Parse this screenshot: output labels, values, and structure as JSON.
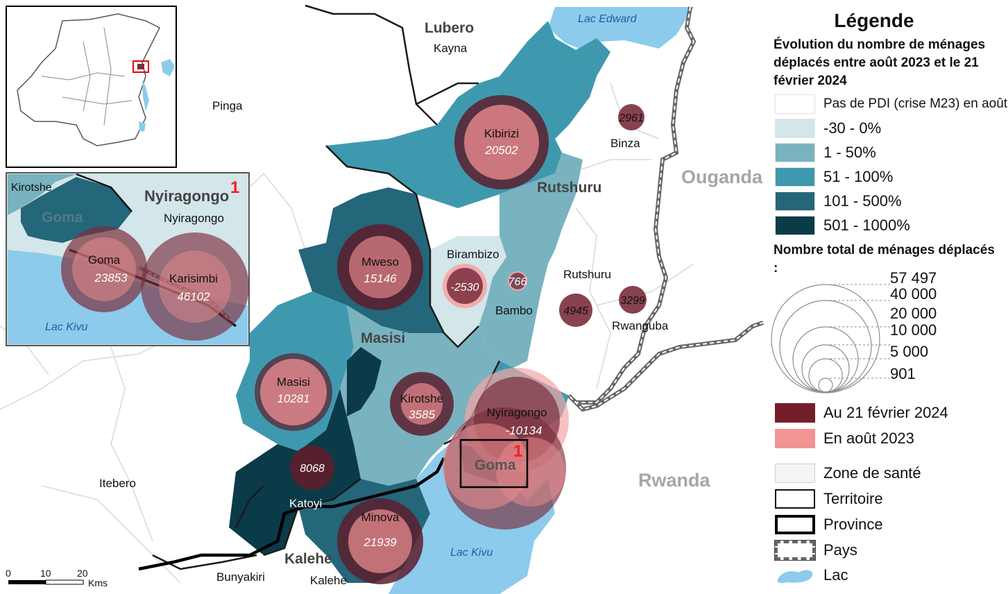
{
  "map": {
    "countries": {
      "uganda": "Ouganda",
      "rwanda": "Rwanda"
    },
    "territories": {
      "lubero": "Lubero",
      "rutshuru": "Rutshuru",
      "masisi": "Masisi",
      "kalehe": "Kalehe",
      "goma": "Goma",
      "nyiragongo_inset": "Nyiragongo"
    },
    "places": {
      "kayna": "Kayna",
      "pinga": "Pinga",
      "binza": "Binza",
      "birambizo": "Birambizo",
      "bambo": "Bambo",
      "rutshuru": "Rutshuru",
      "rwanguba": "Rwanguba",
      "itebero": "Itebero",
      "katoyi": "Katoyi",
      "bunyakiri": "Bunyakiri",
      "kalehe": "Kalehe",
      "kirotshe_inset": "Kirotshe",
      "goma_inset": "Goma",
      "nyiragongo_inset": "Nyiragongo"
    },
    "lakes": {
      "edward": "Lac Edward",
      "kivu": "Lac Kivu",
      "kivu_inset": "Lac Kivu"
    },
    "inset_marker": "1",
    "zones": [
      {
        "id": "kibirizi",
        "name": "Kibirizi",
        "value": "20502"
      },
      {
        "id": "mweso",
        "name": "Mweso",
        "value": "15146"
      },
      {
        "id": "masisi",
        "name": "Masisi",
        "value": "10281"
      },
      {
        "id": "kirotshe",
        "name": "Kirotshe",
        "value": "3585"
      },
      {
        "id": "nyiragongo",
        "name": "Nyiragongo",
        "value": "-10134"
      },
      {
        "id": "minova",
        "name": "Minova",
        "value": "21939"
      },
      {
        "id": "goma",
        "name": "Goma",
        "value": "23853"
      },
      {
        "id": "karisimbi",
        "name": "Karisimbi",
        "value": "46102"
      }
    ],
    "values_only": {
      "binza": "2961",
      "rwanguba": "3299",
      "rutshuru": "4945",
      "birambizo": "-2530",
      "bambo": "766",
      "katoyi": "8068"
    },
    "scalebar": {
      "ticks": [
        "0",
        "10",
        "20"
      ],
      "unit": "Kms"
    }
  },
  "legend": {
    "title": "Légende",
    "subtitle": "Évolution du nombre de ménages déplacés entre août 2023 et le 21 février 2024",
    "classes": [
      {
        "label": "Pas de PDI (crise M23) en août",
        "color": "#ffffff"
      },
      {
        "label": "-30 - 0%",
        "color": "#d3e6ea"
      },
      {
        "label": "1 - 50%",
        "color": "#79b3bf"
      },
      {
        "label": "51 - 100%",
        "color": "#3f99ae"
      },
      {
        "label": "101 - 500%",
        "color": "#24667a"
      },
      {
        "label": "501 - 1000%",
        "color": "#0b3b48"
      }
    ],
    "size_title": "Nombre total de ménages déplacés :",
    "sizes": [
      "57 497",
      "40 000",
      "20 000",
      "10 000",
      "5 000",
      "901"
    ],
    "symbols": [
      {
        "label": "Au 21 février 2024",
        "color": "#731d2b"
      },
      {
        "label": "En août 2023",
        "color": "#f19494"
      }
    ],
    "boundaries": [
      "Zone de santé",
      "Territoire",
      "Province",
      "Pays",
      "Lac"
    ]
  }
}
